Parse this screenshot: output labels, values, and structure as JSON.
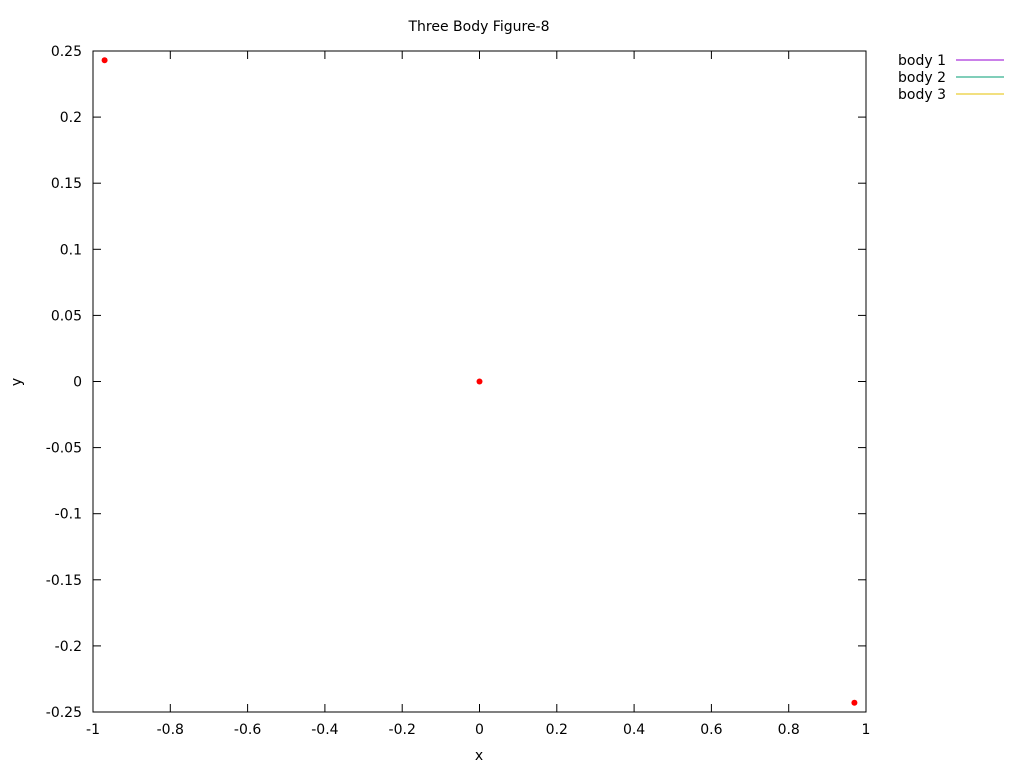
{
  "chart_data": {
    "type": "scatter",
    "title": "Three Body Figure-8",
    "xlabel": "x",
    "ylabel": "y",
    "xlim": [
      -1,
      1
    ],
    "ylim": [
      -0.25,
      0.25
    ],
    "x_ticks": [
      -1,
      -0.8,
      -0.6,
      -0.4,
      -0.2,
      0,
      0.2,
      0.4,
      0.6,
      0.8,
      1
    ],
    "x_tick_labels": [
      "-1",
      "-0.8",
      "-0.6",
      "-0.4",
      "-0.2",
      "0",
      "0.2",
      "0.4",
      "0.6",
      "0.8",
      "1"
    ],
    "y_ticks": [
      0.25,
      0.2,
      0.15,
      0.1,
      0.05,
      0,
      -0.05,
      -0.1,
      -0.15,
      -0.2,
      -0.25
    ],
    "y_tick_labels": [
      "0.25",
      "0.2",
      "0.15",
      "0.1",
      "0.05",
      "0",
      "-0.05",
      "-0.1",
      "-0.15",
      "-0.2",
      "-0.25"
    ],
    "grid": false,
    "legend_position": "outside top-right",
    "series": [
      {
        "name": "body 1",
        "color": "#9400d3",
        "style": "line",
        "points": []
      },
      {
        "name": "body 2",
        "color": "#009e73",
        "style": "line",
        "points": []
      },
      {
        "name": "body 3",
        "color": "#e6c100",
        "style": "line",
        "points": []
      }
    ],
    "markers": {
      "color": "#ff0000",
      "points": [
        {
          "x": -0.97,
          "y": 0.243
        },
        {
          "x": 0.0,
          "y": 0.0
        },
        {
          "x": 0.97,
          "y": -0.243
        }
      ]
    }
  }
}
